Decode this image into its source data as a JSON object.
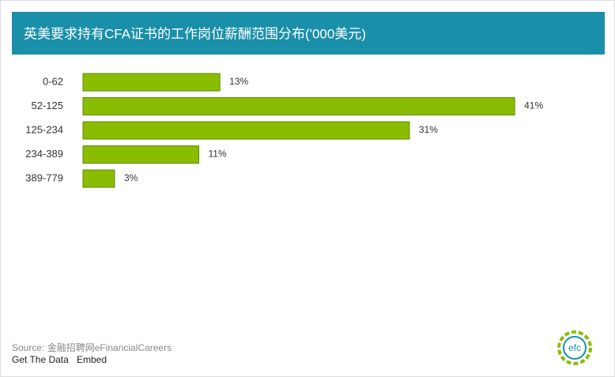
{
  "chart_data": {
    "type": "bar",
    "orientation": "horizontal",
    "title": "英美要求持有CFA证书的工作岗位薪酬范围分布('000美元)",
    "categories": [
      "0-62",
      "52-125",
      "125-234",
      "234-389",
      "389-779"
    ],
    "values": [
      13,
      41,
      31,
      11,
      3
    ],
    "value_labels": [
      "13%",
      "41%",
      "31%",
      "11%",
      "3%"
    ],
    "color": "#8abd00"
  },
  "footer": {
    "source": "Source: 金融招聘网eFinancialCareers",
    "links": [
      "Get The Data",
      "Embed"
    ],
    "logo": "efc"
  }
}
